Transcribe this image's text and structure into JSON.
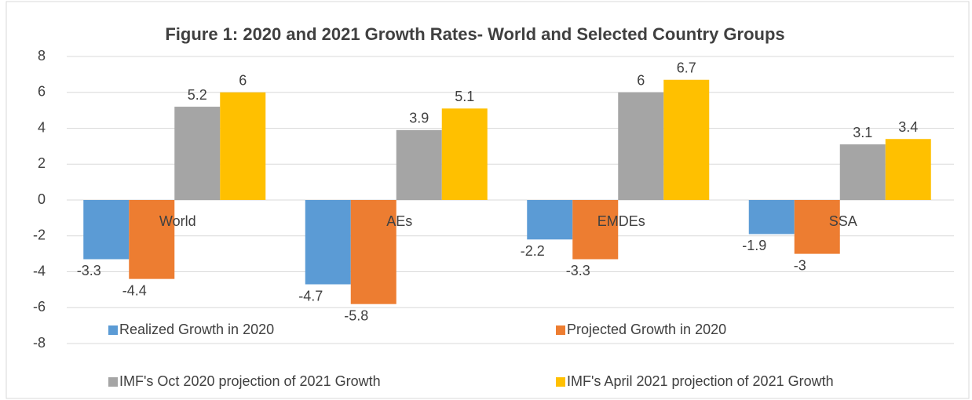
{
  "chart_data": {
    "type": "bar",
    "title": "Figure 1: 2020 and 2021 Growth Rates- World and Selected Country Groups",
    "categories": [
      "World",
      "AEs",
      "EMDEs",
      "SSA"
    ],
    "series": [
      {
        "name": "Realized Growth in 2020",
        "color": "#5b9bd5",
        "values": [
          -3.3,
          -4.7,
          -2.2,
          -1.9
        ]
      },
      {
        "name": "Projected Growth in 2020",
        "color": "#ed7d31",
        "values": [
          -4.4,
          -5.8,
          -3.3,
          -3
        ]
      },
      {
        "name": "IMF's Oct 2020 projection of 2021 Growth",
        "color": "#a5a5a5",
        "values": [
          5.2,
          3.9,
          6,
          3.1
        ]
      },
      {
        "name": "IMF's April 2021 projection of 2021 Growth",
        "color": "#ffc000",
        "values": [
          6,
          5.1,
          6.7,
          3.4
        ]
      }
    ],
    "ylim": [
      -8,
      8
    ],
    "yticks": [
      -8,
      -6,
      -4,
      -2,
      0,
      2,
      4,
      6,
      8
    ],
    "grid": true
  }
}
